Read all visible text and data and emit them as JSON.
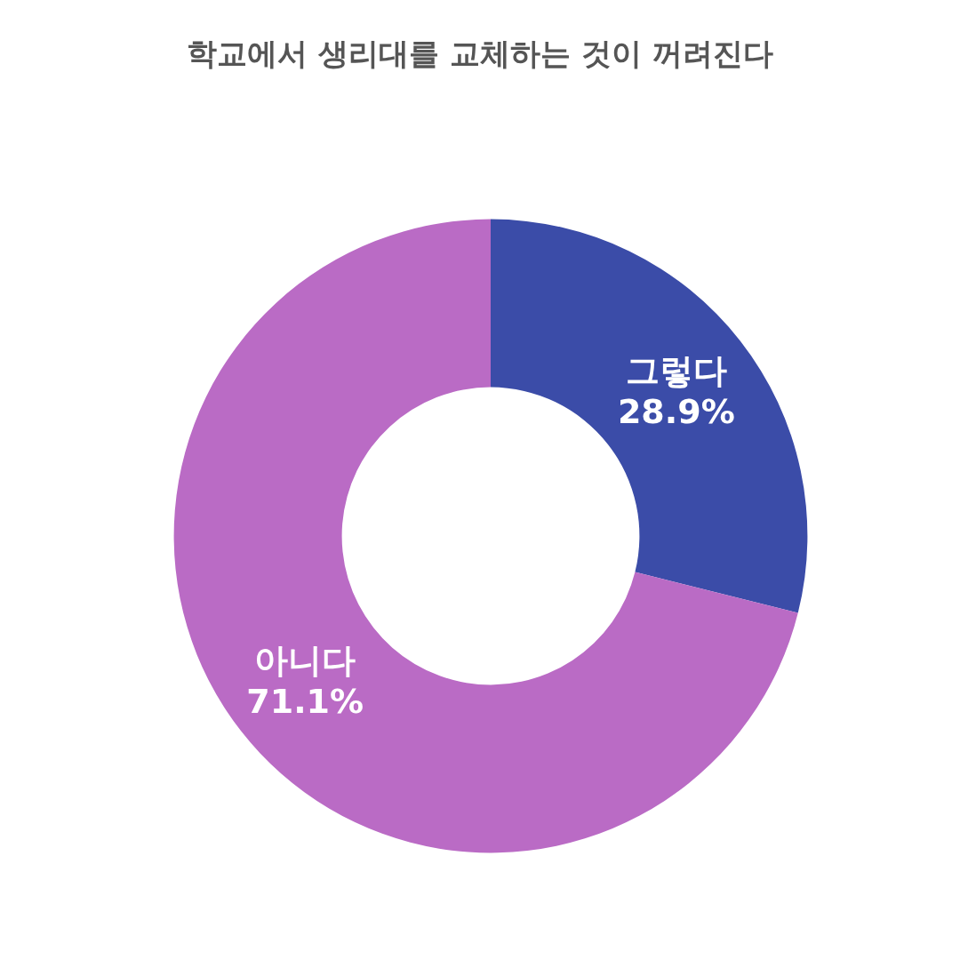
{
  "chart_data": {
    "type": "donut",
    "title": "학교에서 생리대를 교체하는 것이 꺼려진다",
    "categories": [
      "그렇다",
      "아니다"
    ],
    "values": [
      28.9,
      71.1
    ],
    "colors": [
      "#3b4ca8",
      "#ba6bc5"
    ],
    "value_labels": [
      "28.9%",
      "71.1%"
    ]
  }
}
